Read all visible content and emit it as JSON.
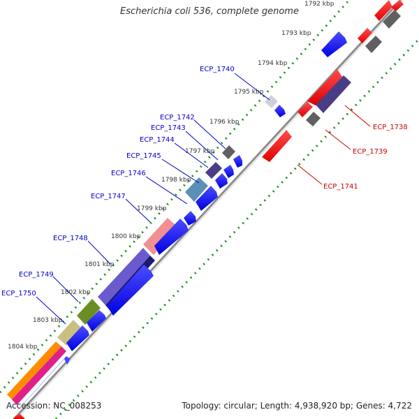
{
  "title": "Escherichia coli 536, complete genome",
  "footer": {
    "accession": "Accession: NC_008253",
    "summary": "Topology: circular; Length: 4,938,920 bp; Genes: 4,722"
  },
  "colors": {
    "backbone": "#8c8c8c",
    "dotted_track": "#1a8a1a",
    "forward_gene": "#0000ff",
    "reverse_gene": "#ff0000",
    "forward_label": "#0000cc",
    "reverse_label": "#cc0000",
    "tick_text": "#333333"
  },
  "ticks": [
    "1792 kbp",
    "1793 kbp",
    "1794 kbp",
    "1795 kbp",
    "1796 kbp",
    "1797 kbp",
    "1798 kbp",
    "1799 kbp",
    "1800 kbp",
    "1801 kbp",
    "1802 kbp",
    "1803 kbp",
    "1804 kbp"
  ],
  "forward_labels": [
    {
      "name": "ECP_1740",
      "color": "#d0d0d8"
    },
    {
      "name": "ECP_1742",
      "color": "#606060"
    },
    {
      "name": "ECP_1743",
      "color": "#4b3c86"
    },
    {
      "name": "ECP_1744",
      "color": "#4b3c86"
    },
    {
      "name": "ECP_1745",
      "color": "#5b8fb8"
    },
    {
      "name": "ECP_1746",
      "color": "#f09090"
    },
    {
      "name": "ECP_1747",
      "color": "#f09090"
    },
    {
      "name": "ECP_1748",
      "color": "#6a5acd"
    },
    {
      "name": "ECP_1749",
      "color": "#6b8e23"
    },
    {
      "name": "ECP_1750",
      "color": "#c8c080"
    }
  ],
  "reverse_labels": [
    {
      "name": "ECP_1738",
      "color": "#ff0000"
    },
    {
      "name": "ECP_1739",
      "color": "#666666"
    },
    {
      "name": "ECP_1741",
      "color": "#ff0000"
    }
  ]
}
